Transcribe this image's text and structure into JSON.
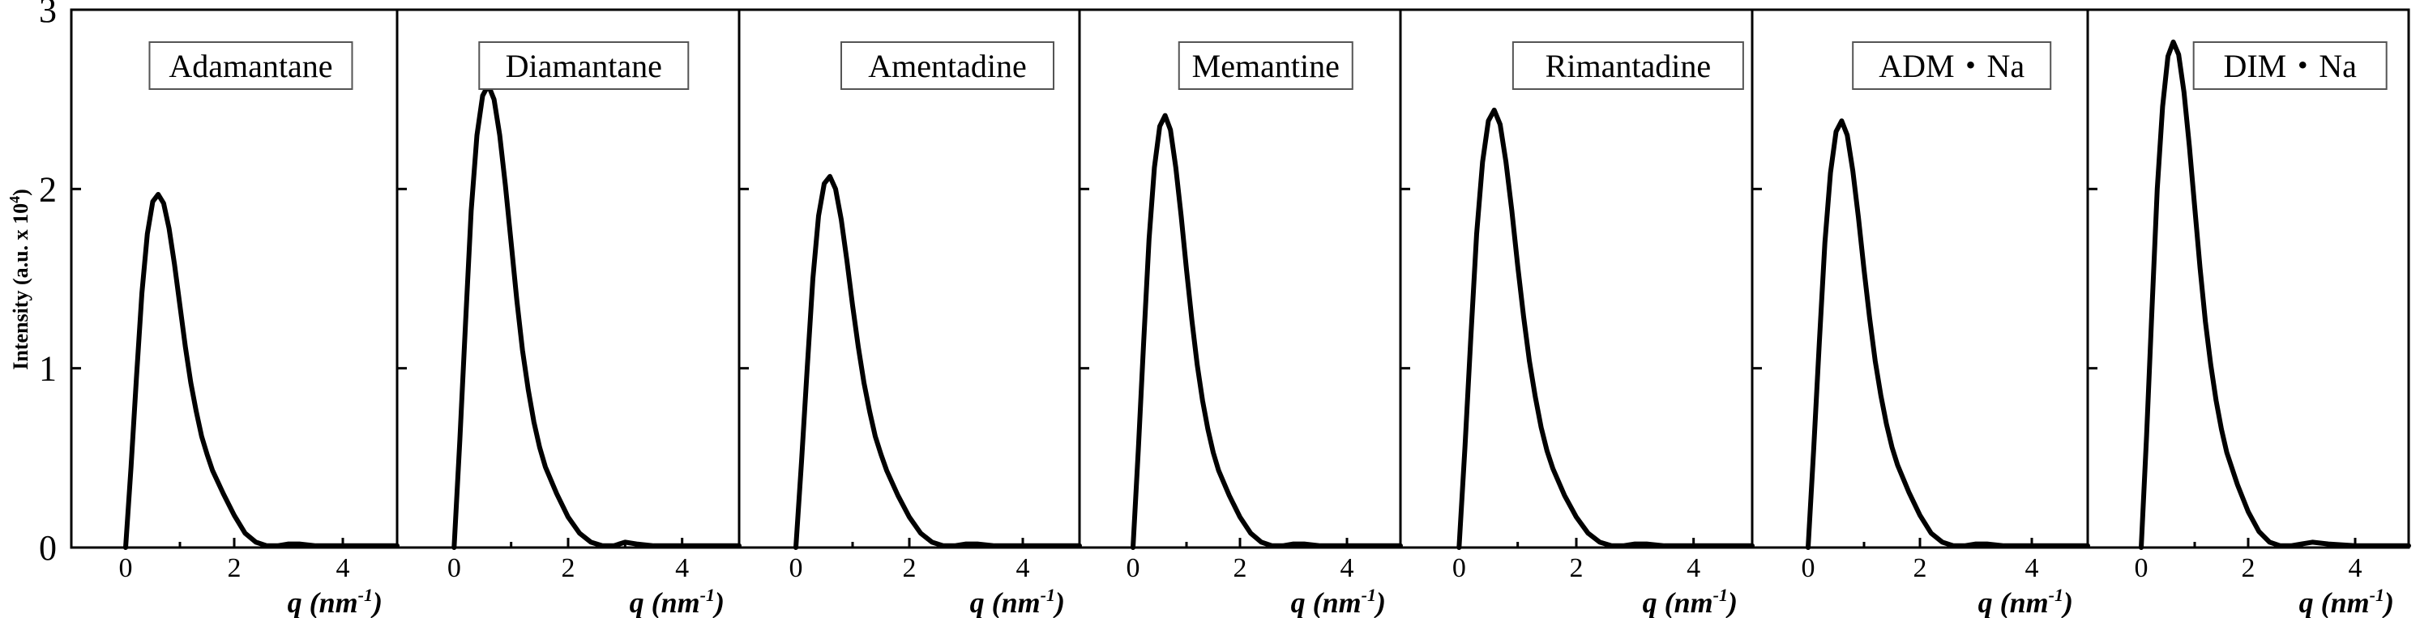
{
  "chart_data": {
    "type": "line",
    "title": "",
    "ylabel": "Intensity (a.u. x 10",
    "ylabel_sup": "4",
    "ylabel_end": ")",
    "ylim": [
      0,
      3
    ],
    "y_ticks": [
      0,
      1,
      2,
      3
    ],
    "xlabel": "q (nm",
    "xlabel_sup": "-1",
    "xlabel_end": ")",
    "xlim": [
      -1,
      5
    ],
    "x_ticks": [
      0,
      2,
      4
    ],
    "panels": [
      {
        "name": "Adamantane",
        "x": [
          0,
          0.1,
          0.2,
          0.3,
          0.4,
          0.5,
          0.6,
          0.7,
          0.8,
          0.9,
          1.0,
          1.1,
          1.2,
          1.3,
          1.4,
          1.5,
          1.6,
          1.8,
          2.0,
          2.2,
          2.4,
          2.6,
          2.8,
          3.0,
          3.2,
          3.5,
          4.0,
          5.0
        ],
        "y": [
          0,
          0.45,
          0.95,
          1.42,
          1.75,
          1.93,
          1.97,
          1.92,
          1.78,
          1.58,
          1.35,
          1.12,
          0.92,
          0.76,
          0.62,
          0.52,
          0.43,
          0.3,
          0.18,
          0.08,
          0.03,
          0.01,
          0.01,
          0.02,
          0.02,
          0.01,
          0.01,
          0.01
        ]
      },
      {
        "name": "Diamantane",
        "x": [
          0,
          0.1,
          0.2,
          0.3,
          0.4,
          0.5,
          0.6,
          0.7,
          0.8,
          0.9,
          1.0,
          1.1,
          1.2,
          1.3,
          1.4,
          1.5,
          1.6,
          1.8,
          2.0,
          2.2,
          2.4,
          2.6,
          2.8,
          3.0,
          3.2,
          3.5,
          4.0,
          5.0
        ],
        "y": [
          0,
          0.6,
          1.25,
          1.88,
          2.3,
          2.52,
          2.58,
          2.5,
          2.3,
          2.02,
          1.7,
          1.38,
          1.1,
          0.88,
          0.7,
          0.56,
          0.45,
          0.3,
          0.17,
          0.08,
          0.03,
          0.01,
          0.01,
          0.03,
          0.02,
          0.01,
          0.01,
          0.01
        ]
      },
      {
        "name": "Amentadine",
        "x": [
          0,
          0.1,
          0.2,
          0.3,
          0.4,
          0.5,
          0.6,
          0.7,
          0.8,
          0.9,
          1.0,
          1.1,
          1.2,
          1.3,
          1.4,
          1.5,
          1.6,
          1.8,
          2.0,
          2.2,
          2.4,
          2.6,
          2.8,
          3.0,
          3.2,
          3.5,
          4.0,
          5.0
        ],
        "y": [
          0,
          0.48,
          1.0,
          1.5,
          1.85,
          2.03,
          2.07,
          2.0,
          1.83,
          1.6,
          1.35,
          1.12,
          0.92,
          0.76,
          0.62,
          0.52,
          0.43,
          0.29,
          0.17,
          0.08,
          0.03,
          0.01,
          0.01,
          0.02,
          0.02,
          0.01,
          0.01,
          0.01
        ]
      },
      {
        "name": "Memantine",
        "x": [
          0,
          0.1,
          0.2,
          0.3,
          0.4,
          0.5,
          0.6,
          0.7,
          0.8,
          0.9,
          1.0,
          1.1,
          1.2,
          1.3,
          1.4,
          1.5,
          1.6,
          1.8,
          2.0,
          2.2,
          2.4,
          2.6,
          2.8,
          3.0,
          3.2,
          3.5,
          4.0,
          5.0
        ],
        "y": [
          0,
          0.55,
          1.15,
          1.72,
          2.12,
          2.35,
          2.41,
          2.33,
          2.12,
          1.85,
          1.55,
          1.27,
          1.02,
          0.82,
          0.66,
          0.53,
          0.43,
          0.29,
          0.17,
          0.08,
          0.03,
          0.01,
          0.01,
          0.02,
          0.02,
          0.01,
          0.01,
          0.01
        ]
      },
      {
        "name": "Rimantadine",
        "x": [
          0,
          0.1,
          0.2,
          0.3,
          0.4,
          0.5,
          0.6,
          0.7,
          0.8,
          0.9,
          1.0,
          1.1,
          1.2,
          1.3,
          1.4,
          1.5,
          1.6,
          1.8,
          2.0,
          2.2,
          2.4,
          2.6,
          2.8,
          3.0,
          3.2,
          3.5,
          4.0,
          5.0
        ],
        "y": [
          0,
          0.56,
          1.17,
          1.75,
          2.15,
          2.38,
          2.44,
          2.36,
          2.15,
          1.88,
          1.57,
          1.29,
          1.04,
          0.84,
          0.67,
          0.54,
          0.44,
          0.29,
          0.17,
          0.08,
          0.03,
          0.01,
          0.01,
          0.02,
          0.02,
          0.01,
          0.01,
          0.01
        ]
      },
      {
        "name": "ADM・Na",
        "x": [
          0,
          0.1,
          0.2,
          0.3,
          0.4,
          0.5,
          0.6,
          0.7,
          0.8,
          0.9,
          1.0,
          1.1,
          1.2,
          1.3,
          1.4,
          1.5,
          1.6,
          1.8,
          2.0,
          2.2,
          2.4,
          2.6,
          2.8,
          3.0,
          3.2,
          3.5,
          4.0,
          5.0
        ],
        "y": [
          0,
          0.55,
          1.14,
          1.7,
          2.09,
          2.32,
          2.38,
          2.3,
          2.1,
          1.84,
          1.55,
          1.28,
          1.04,
          0.85,
          0.69,
          0.56,
          0.46,
          0.31,
          0.18,
          0.08,
          0.03,
          0.01,
          0.01,
          0.02,
          0.02,
          0.01,
          0.01,
          0.01
        ]
      },
      {
        "name": "DIM・Na",
        "x": [
          0,
          0.1,
          0.2,
          0.3,
          0.4,
          0.5,
          0.6,
          0.7,
          0.8,
          0.9,
          1.0,
          1.1,
          1.2,
          1.3,
          1.4,
          1.5,
          1.6,
          1.8,
          2.0,
          2.2,
          2.4,
          2.6,
          2.8,
          3.0,
          3.2,
          3.5,
          4.0,
          5.0
        ],
        "y": [
          0,
          0.62,
          1.32,
          2.0,
          2.46,
          2.74,
          2.82,
          2.75,
          2.54,
          2.24,
          1.9,
          1.56,
          1.26,
          1.02,
          0.82,
          0.66,
          0.53,
          0.35,
          0.2,
          0.09,
          0.03,
          0.01,
          0.01,
          0.02,
          0.03,
          0.02,
          0.01,
          0.01
        ]
      }
    ]
  }
}
